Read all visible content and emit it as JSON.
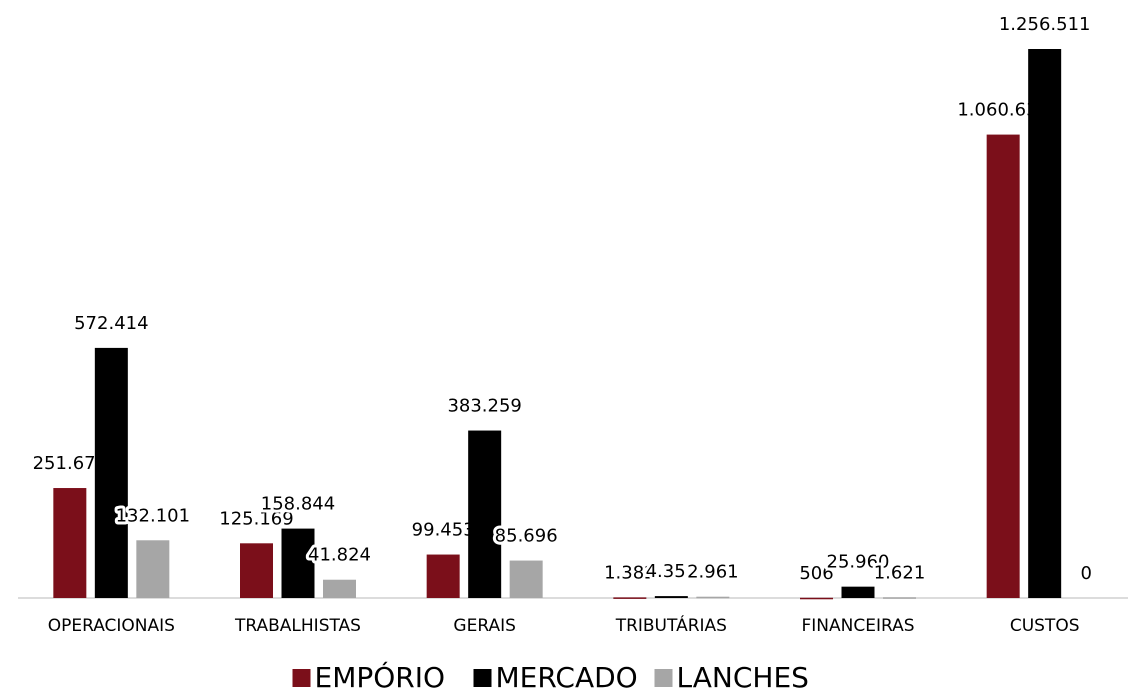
{
  "chart_data": {
    "type": "bar",
    "categories": [
      "OPERACIONAIS",
      "TRABALHISTAS",
      "GERAIS",
      "TRIBUTÁRIAS",
      "FINANCEIRAS",
      "CUSTOS"
    ],
    "series": [
      {
        "name": "EMPÓRIO",
        "color": "#7b0f1a",
        "values": [
          251677,
          125169,
          99453,
          1382,
          506,
          1060630
        ],
        "value_labels": [
          "251.677",
          "125.169",
          "99.453",
          "1.382",
          "506",
          "1.060.630"
        ]
      },
      {
        "name": "MERCADO",
        "color": "#000000",
        "values": [
          572414,
          158844,
          383259,
          4351,
          25960,
          1256511
        ],
        "value_labels": [
          "572.414",
          "158.844",
          "383.259",
          "4.351",
          "25.960",
          "1.256.511"
        ]
      },
      {
        "name": "LANCHES",
        "color": "#a6a6a6",
        "values": [
          132101,
          41824,
          85696,
          2961,
          1621,
          0
        ],
        "value_labels": [
          "132.101",
          "41.824",
          "85.696",
          "2.961",
          "1.621",
          "0"
        ]
      }
    ],
    "ylim": [
      0,
      1300000
    ],
    "legend": "bottom"
  }
}
